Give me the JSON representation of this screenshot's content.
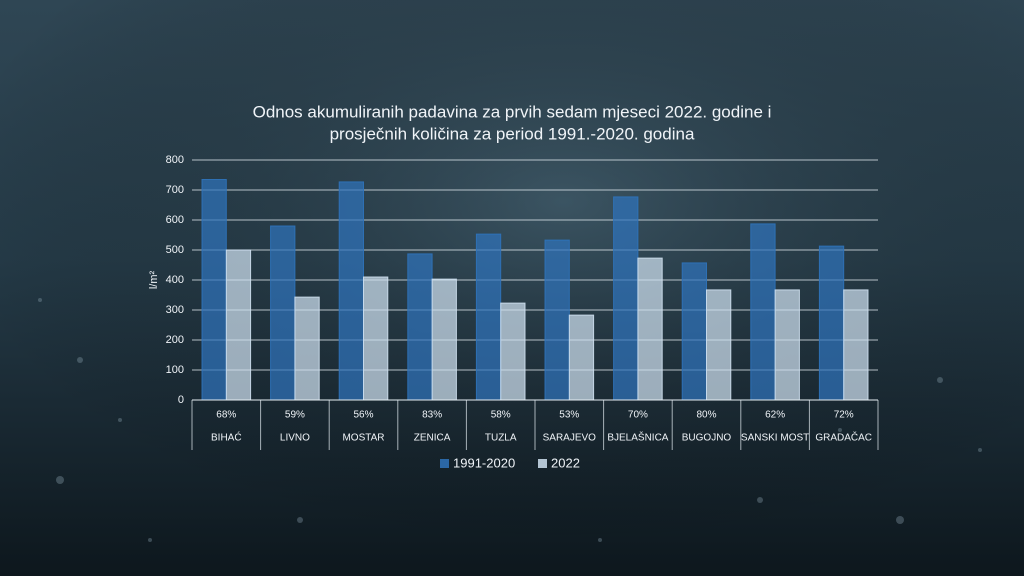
{
  "chart_data": {
    "type": "bar",
    "title": [
      "Odnos akumuliranih padavina za prvih sedam mjeseci 2022. godine i",
      "prosječnih količina za period 1991.-2020. godina"
    ],
    "y_label": "l/m²",
    "categories": [
      "BIHAĆ",
      "LIVNO",
      "MOSTAR",
      "ZENICA",
      "TUZLA",
      "SARAJEVO",
      "BJELAŠNICA",
      "BUGOJNO",
      "SANSKI MOST",
      "GRADAČAC"
    ],
    "ratio_labels": [
      "68%",
      "59%",
      "56%",
      "83%",
      "58%",
      "53%",
      "70%",
      "80%",
      "62%",
      "72%"
    ],
    "series": [
      {
        "name": "1991-2020",
        "color": "#2f73bb",
        "values": [
          735,
          580,
          727,
          487,
          553,
          533,
          677,
          457,
          587,
          513
        ]
      },
      {
        "name": "2022",
        "color": "#cfe0f0",
        "values": [
          500,
          343,
          410,
          403,
          323,
          283,
          473,
          367,
          367,
          367
        ]
      }
    ],
    "ylim": [
      0,
      800
    ],
    "yticks": [
      0,
      100,
      200,
      300,
      400,
      500,
      600,
      700,
      800
    ],
    "grid": true
  }
}
